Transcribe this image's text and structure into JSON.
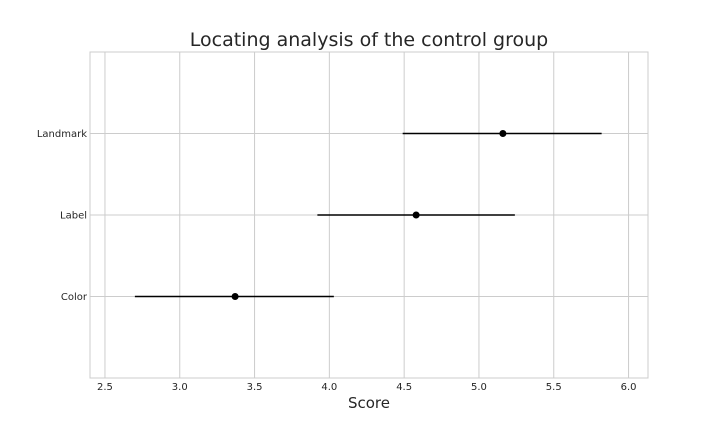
{
  "chart_data": {
    "type": "scatter",
    "title": "Locating analysis of the control group",
    "xlabel": "Score",
    "ylabel": "",
    "xlim": [
      2.4,
      6.13
    ],
    "xticks": [
      "2.5",
      "3.0",
      "3.5",
      "4.0",
      "4.5",
      "5.0",
      "5.5",
      "6.0"
    ],
    "categories": [
      "Landmark",
      "Label",
      "Color"
    ],
    "points": [
      {
        "category": "Landmark",
        "value": 5.16,
        "ci_low": 4.49,
        "ci_high": 5.82
      },
      {
        "category": "Label",
        "value": 4.58,
        "ci_low": 3.92,
        "ci_high": 5.24
      },
      {
        "category": "Color",
        "value": 3.37,
        "ci_low": 2.7,
        "ci_high": 4.03
      }
    ],
    "grid": true,
    "colors": {
      "marker": "#000000",
      "errorbar": "#000000",
      "grid": "#cccccc",
      "spine": "#cccccc",
      "text": "#262626"
    }
  }
}
